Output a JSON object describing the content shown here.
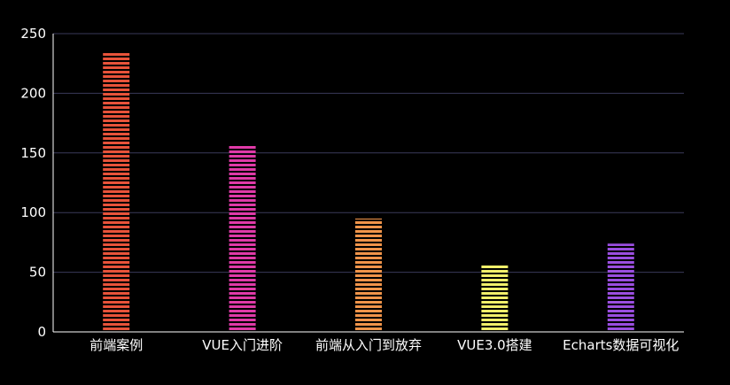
{
  "chart_data": {
    "type": "bar",
    "title": "",
    "xlabel": "",
    "ylabel": "",
    "categories": [
      "前端案例",
      "VUE入门进阶",
      "前端从入门到放弃",
      "VUE3.0搭建",
      "Echarts数据可视化"
    ],
    "values": [
      235,
      157,
      95,
      57,
      74
    ],
    "ylim": [
      0,
      250
    ],
    "yticks": [
      0,
      50,
      100,
      150,
      200,
      250
    ],
    "grid": true,
    "legend": false,
    "bar_style": "horizontal-striped",
    "colors": [
      "#e8533a",
      "#e03aa8",
      "#f0944a",
      "#f2f06a",
      "#9a4ee0"
    ],
    "background": "#000000",
    "text_color": "#ffffff",
    "grid_color": "#3a3a5a"
  }
}
